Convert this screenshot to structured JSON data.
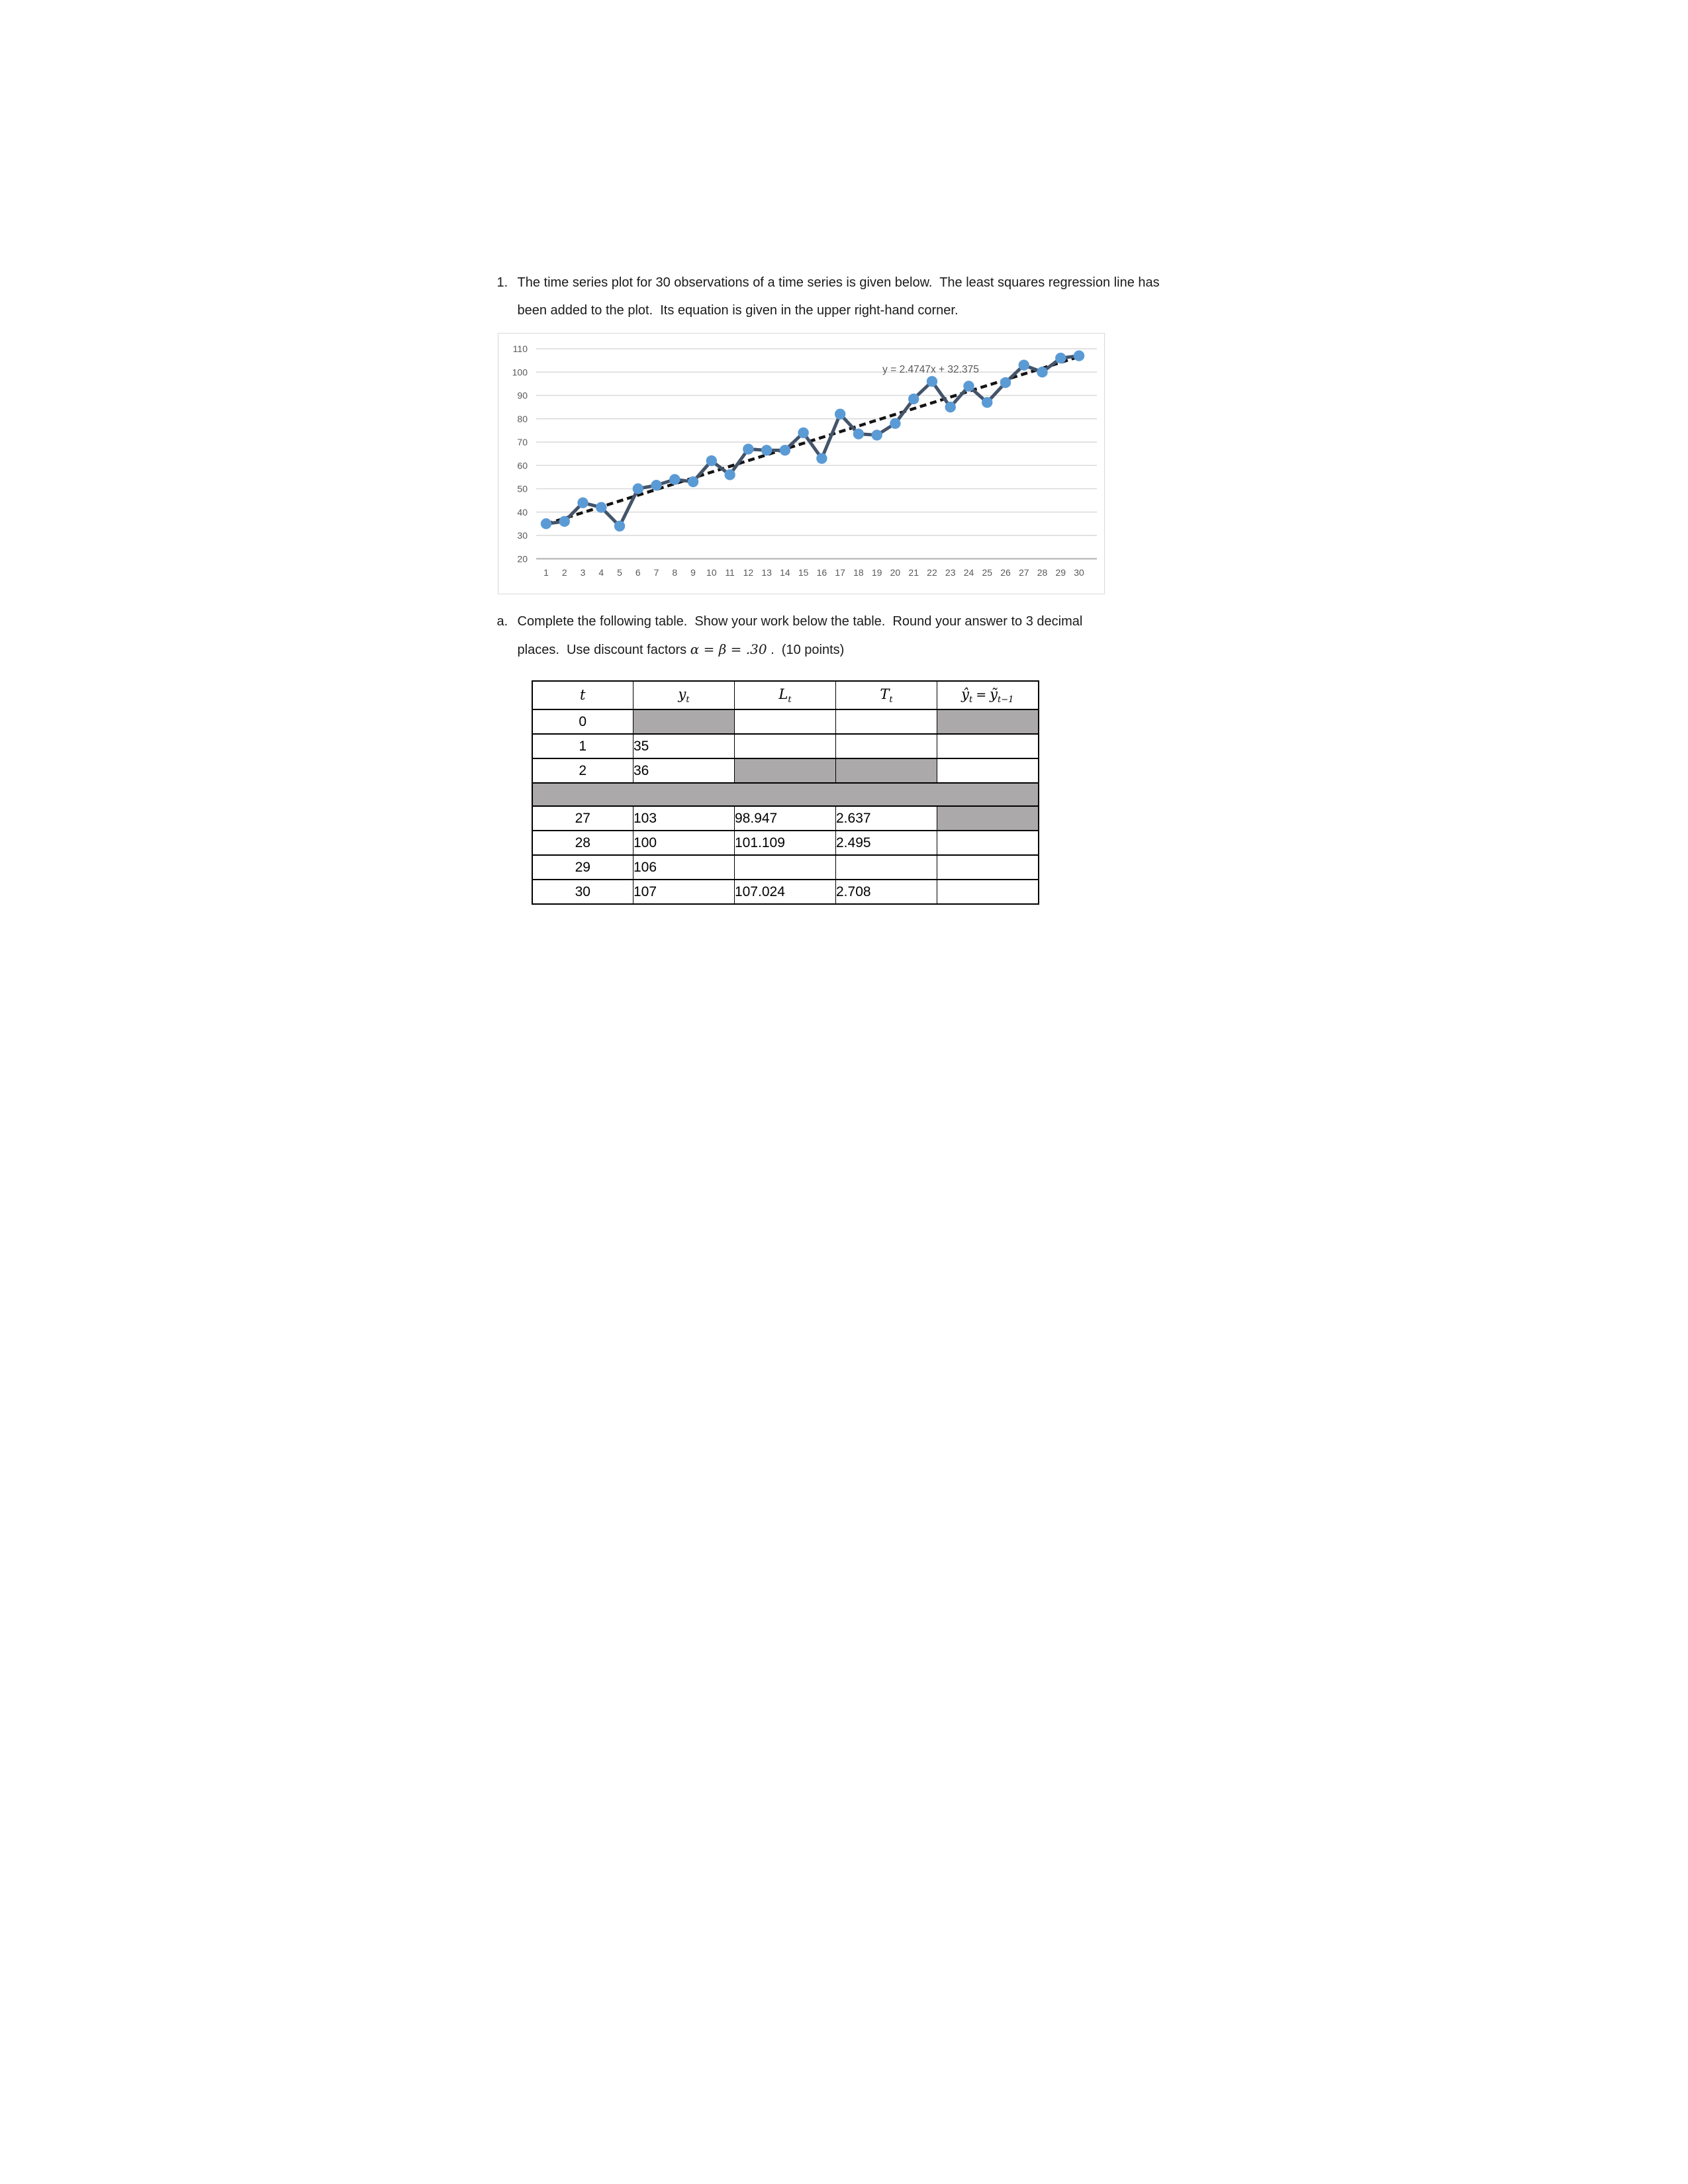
{
  "question1": {
    "number": "1.",
    "line1": "The time series plot for 30 observations of a time series is given below.  The least squares regression line has",
    "line2": "been added to the plot.  Its equation is given in the upper right-hand corner."
  },
  "question_a": {
    "letter": "a.",
    "line1": "Complete the following table.  Show your work below the table.  Round your answer to 3 decimal",
    "line2_pre": "places.  Use discount factors ",
    "line2_math": "α = β = .30",
    "line2_post": " .  (10 points)"
  },
  "chart_data": {
    "type": "line",
    "title": "",
    "xlabel": "",
    "ylabel": "",
    "x": [
      1,
      2,
      3,
      4,
      5,
      6,
      7,
      8,
      9,
      10,
      11,
      12,
      13,
      14,
      15,
      16,
      17,
      18,
      19,
      20,
      21,
      22,
      23,
      24,
      25,
      26,
      27,
      28,
      29,
      30
    ],
    "series": [
      {
        "name": "y_t",
        "values": [
          35,
          36,
          44,
          42,
          34,
          50,
          51.5,
          54,
          53,
          62,
          56,
          67,
          66.5,
          66.5,
          74,
          63,
          82,
          73.5,
          73,
          78,
          88.5,
          96,
          85,
          94,
          87,
          95.5,
          103,
          100,
          106,
          107
        ]
      }
    ],
    "trendline": {
      "equation_label": "y = 2.4747x + 32.375",
      "slope": 2.4747,
      "intercept": 32.375,
      "style": "dashed"
    },
    "ylim": [
      20,
      110
    ],
    "yticks": [
      20,
      30,
      40,
      50,
      60,
      70,
      80,
      90,
      100,
      110
    ],
    "xticks": [
      1,
      2,
      3,
      4,
      5,
      6,
      7,
      8,
      9,
      10,
      11,
      12,
      13,
      14,
      15,
      16,
      17,
      18,
      19,
      20,
      21,
      22,
      23,
      24,
      25,
      26,
      27,
      28,
      29,
      30
    ],
    "grid": true,
    "legend_position": "none"
  },
  "colors": {
    "marker": "#5B9BD5",
    "series_line": "#44546A",
    "trendline": "#141414",
    "gridline": "#D9D9D9",
    "axis_baseline": "#BFBFBF",
    "tick_label": "#595959",
    "equation_text": "#595959",
    "chart_border": "#D9D9D9",
    "table_shaded_cell": "#ABA9AA",
    "table_border": "#000000"
  },
  "table": {
    "headers": {
      "t": {
        "base": "t"
      },
      "y": {
        "base": "y",
        "sub": "t"
      },
      "L": {
        "base": "L",
        "sub": "t"
      },
      "T": {
        "base": "T",
        "sub": "t"
      },
      "yhat": {
        "lhs": "ŷ",
        "lhs_sub": "t",
        "eq": "=",
        "rhs": "ỹ",
        "rhs_sub": "t−1"
      }
    },
    "rows": [
      {
        "t": "0",
        "y": "",
        "L": "",
        "T": "",
        "yhat": "",
        "shaded": [
          "y",
          "yhat"
        ]
      },
      {
        "t": "1",
        "y": "35",
        "L": "",
        "T": "",
        "yhat": "",
        "shaded": []
      },
      {
        "t": "2",
        "y": "36",
        "L": "",
        "T": "",
        "yhat": "",
        "shaded": [
          "L",
          "T"
        ]
      },
      {
        "separator": true
      },
      {
        "t": "27",
        "y": "103",
        "L": "98.947",
        "T": "2.637",
        "yhat": "",
        "shaded": [
          "yhat"
        ]
      },
      {
        "t": "28",
        "y": "100",
        "L": "101.109",
        "T": "2.495",
        "yhat": "",
        "shaded": []
      },
      {
        "t": "29",
        "y": "106",
        "L": "",
        "T": "",
        "yhat": "",
        "shaded": []
      },
      {
        "t": "30",
        "y": "107",
        "L": "107.024",
        "T": "2.708",
        "yhat": "",
        "shaded": []
      }
    ]
  }
}
